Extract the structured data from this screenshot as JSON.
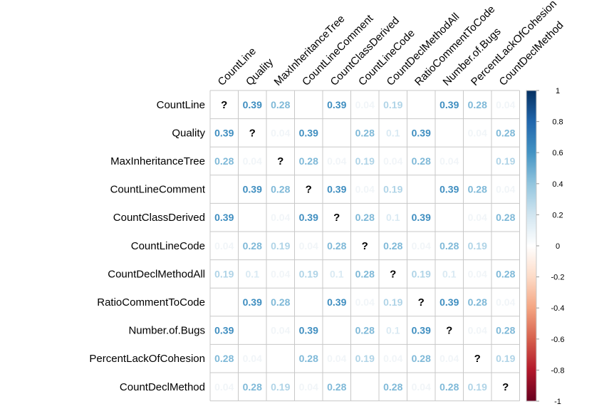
{
  "chart_data": {
    "type": "heatmap",
    "variables": [
      "CountLine",
      "Quality",
      "MaxInheritanceTree",
      "CountLineComment",
      "CountClassDerived",
      "CountLineCode",
      "CountDeclMethodAll",
      "RatioCommentToCode",
      "Number.of.Bugs",
      "PercentLackOfCohesion",
      "CountDeclMethod"
    ],
    "diagonal_symbol": "?",
    "values": [
      [
        null,
        0.39,
        0.28,
        0,
        0.39,
        0.04,
        0.19,
        0,
        0.39,
        0.28,
        0.04
      ],
      [
        0.39,
        null,
        0.04,
        0.39,
        0,
        0.28,
        0.1,
        0.39,
        0,
        0.04,
        0.28
      ],
      [
        0.28,
        0.04,
        null,
        0.28,
        0.04,
        0.19,
        0.04,
        0.28,
        0.04,
        0,
        0.19
      ],
      [
        0,
        0.39,
        0.28,
        null,
        0.39,
        0.04,
        0.19,
        0,
        0.39,
        0.28,
        0.04
      ],
      [
        0.39,
        0,
        0.04,
        0.39,
        null,
        0.28,
        0.1,
        0.39,
        0,
        0.04,
        0.28
      ],
      [
        0.04,
        0.28,
        0.19,
        0.04,
        0.28,
        null,
        0.28,
        0.04,
        0.28,
        0.19,
        0
      ],
      [
        0.19,
        0.1,
        0.04,
        0.19,
        0.1,
        0.28,
        null,
        0.19,
        0.1,
        0.04,
        0.28
      ],
      [
        0,
        0.39,
        0.28,
        0,
        0.39,
        0.04,
        0.19,
        null,
        0.39,
        0.28,
        0.04
      ],
      [
        0.39,
        0,
        0.04,
        0.39,
        0,
        0.28,
        0.1,
        0.39,
        null,
        0.04,
        0.28
      ],
      [
        0.28,
        0.04,
        0,
        0.28,
        0.04,
        0.19,
        0.04,
        0.28,
        0.04,
        null,
        0.19
      ],
      [
        0.04,
        0.28,
        0.19,
        0.04,
        0.28,
        0,
        0.28,
        0.04,
        0.28,
        0.19,
        null
      ]
    ],
    "colorbar": {
      "range": [
        -1,
        1
      ],
      "ticks": [
        "1",
        "0.8",
        "0.6",
        "0.4",
        "0.2",
        "0",
        "-0.2",
        "-0.4",
        "-0.6",
        "-0.8",
        "-1"
      ],
      "colors": [
        "#67001f",
        "#b2182b",
        "#d6604d",
        "#f4a582",
        "#fddbc7",
        "#ffffff",
        "#d1e5f0",
        "#92c5de",
        "#4393c3",
        "#2166ac",
        "#053061"
      ]
    },
    "grid": true,
    "legend": "right"
  }
}
